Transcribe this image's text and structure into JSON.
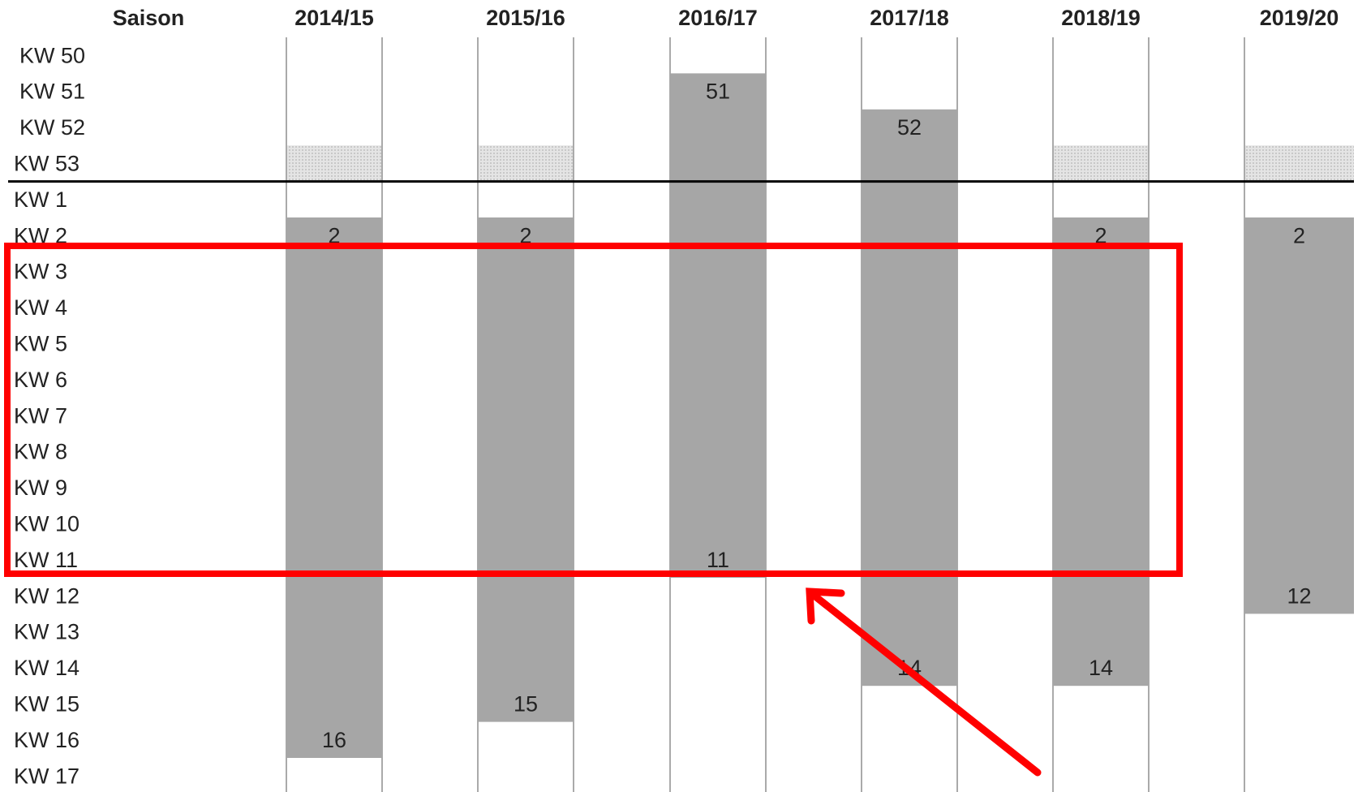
{
  "chart_data": {
    "type": "range",
    "x_title": "Saison",
    "categories": [
      "2014/15",
      "2015/16",
      "2016/17",
      "2017/18",
      "2018/19",
      "2019/20"
    ],
    "start": [
      2,
      2,
      51,
      52,
      2,
      2
    ],
    "end": [
      16,
      15,
      11,
      14,
      14,
      12
    ],
    "color": "#a6a6a6",
    "yticks": [
      {
        "value": 50,
        "label": "KW 50"
      },
      {
        "value": 51,
        "label": "KW 51"
      },
      {
        "value": 52,
        "label": "KW 52"
      },
      {
        "value": 53,
        "label": "KW 53"
      },
      {
        "value": 1,
        "label": "KW 1"
      },
      {
        "value": 2,
        "label": "KW 2"
      },
      {
        "value": 3,
        "label": "KW 3"
      },
      {
        "value": 4,
        "label": "KW 4"
      },
      {
        "value": 5,
        "label": "KW 5"
      },
      {
        "value": 6,
        "label": "KW 6"
      },
      {
        "value": 7,
        "label": "KW 7"
      },
      {
        "value": 8,
        "label": "KW 8"
      },
      {
        "value": 9,
        "label": "KW 9"
      },
      {
        "value": 10,
        "label": "KW 10"
      },
      {
        "value": 11,
        "label": "KW 11"
      },
      {
        "value": 12,
        "label": "KW 12"
      },
      {
        "value": 13,
        "label": "KW 13"
      },
      {
        "value": 14,
        "label": "KW 14"
      },
      {
        "value": 15,
        "label": "KW 15"
      },
      {
        "value": 16,
        "label": "KW 16"
      },
      {
        "value": 17,
        "label": "KW 17"
      }
    ]
  }
}
